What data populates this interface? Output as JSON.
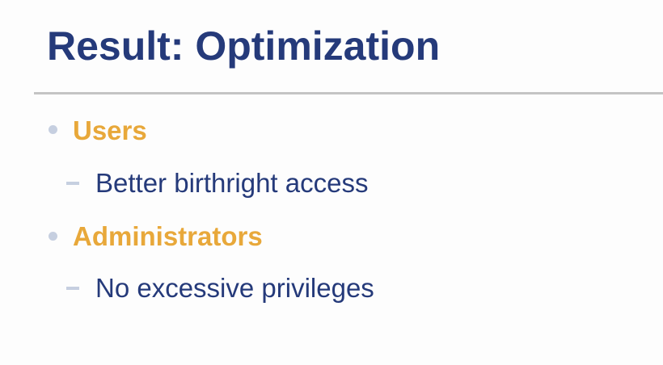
{
  "slide": {
    "title": "Result: Optimization",
    "bullets": [
      {
        "label": "Users",
        "sub": [
          "Better birthright access"
        ]
      },
      {
        "label": "Administrators",
        "sub": [
          "No excessive privileges"
        ]
      }
    ]
  },
  "colors": {
    "title": "#253a7a",
    "heading_accent": "#e8a83a",
    "body_text": "#253a7a",
    "bullet_marker": "#c6cfe0",
    "divider": "#c4c4c4",
    "background": "#fdfdfd"
  }
}
